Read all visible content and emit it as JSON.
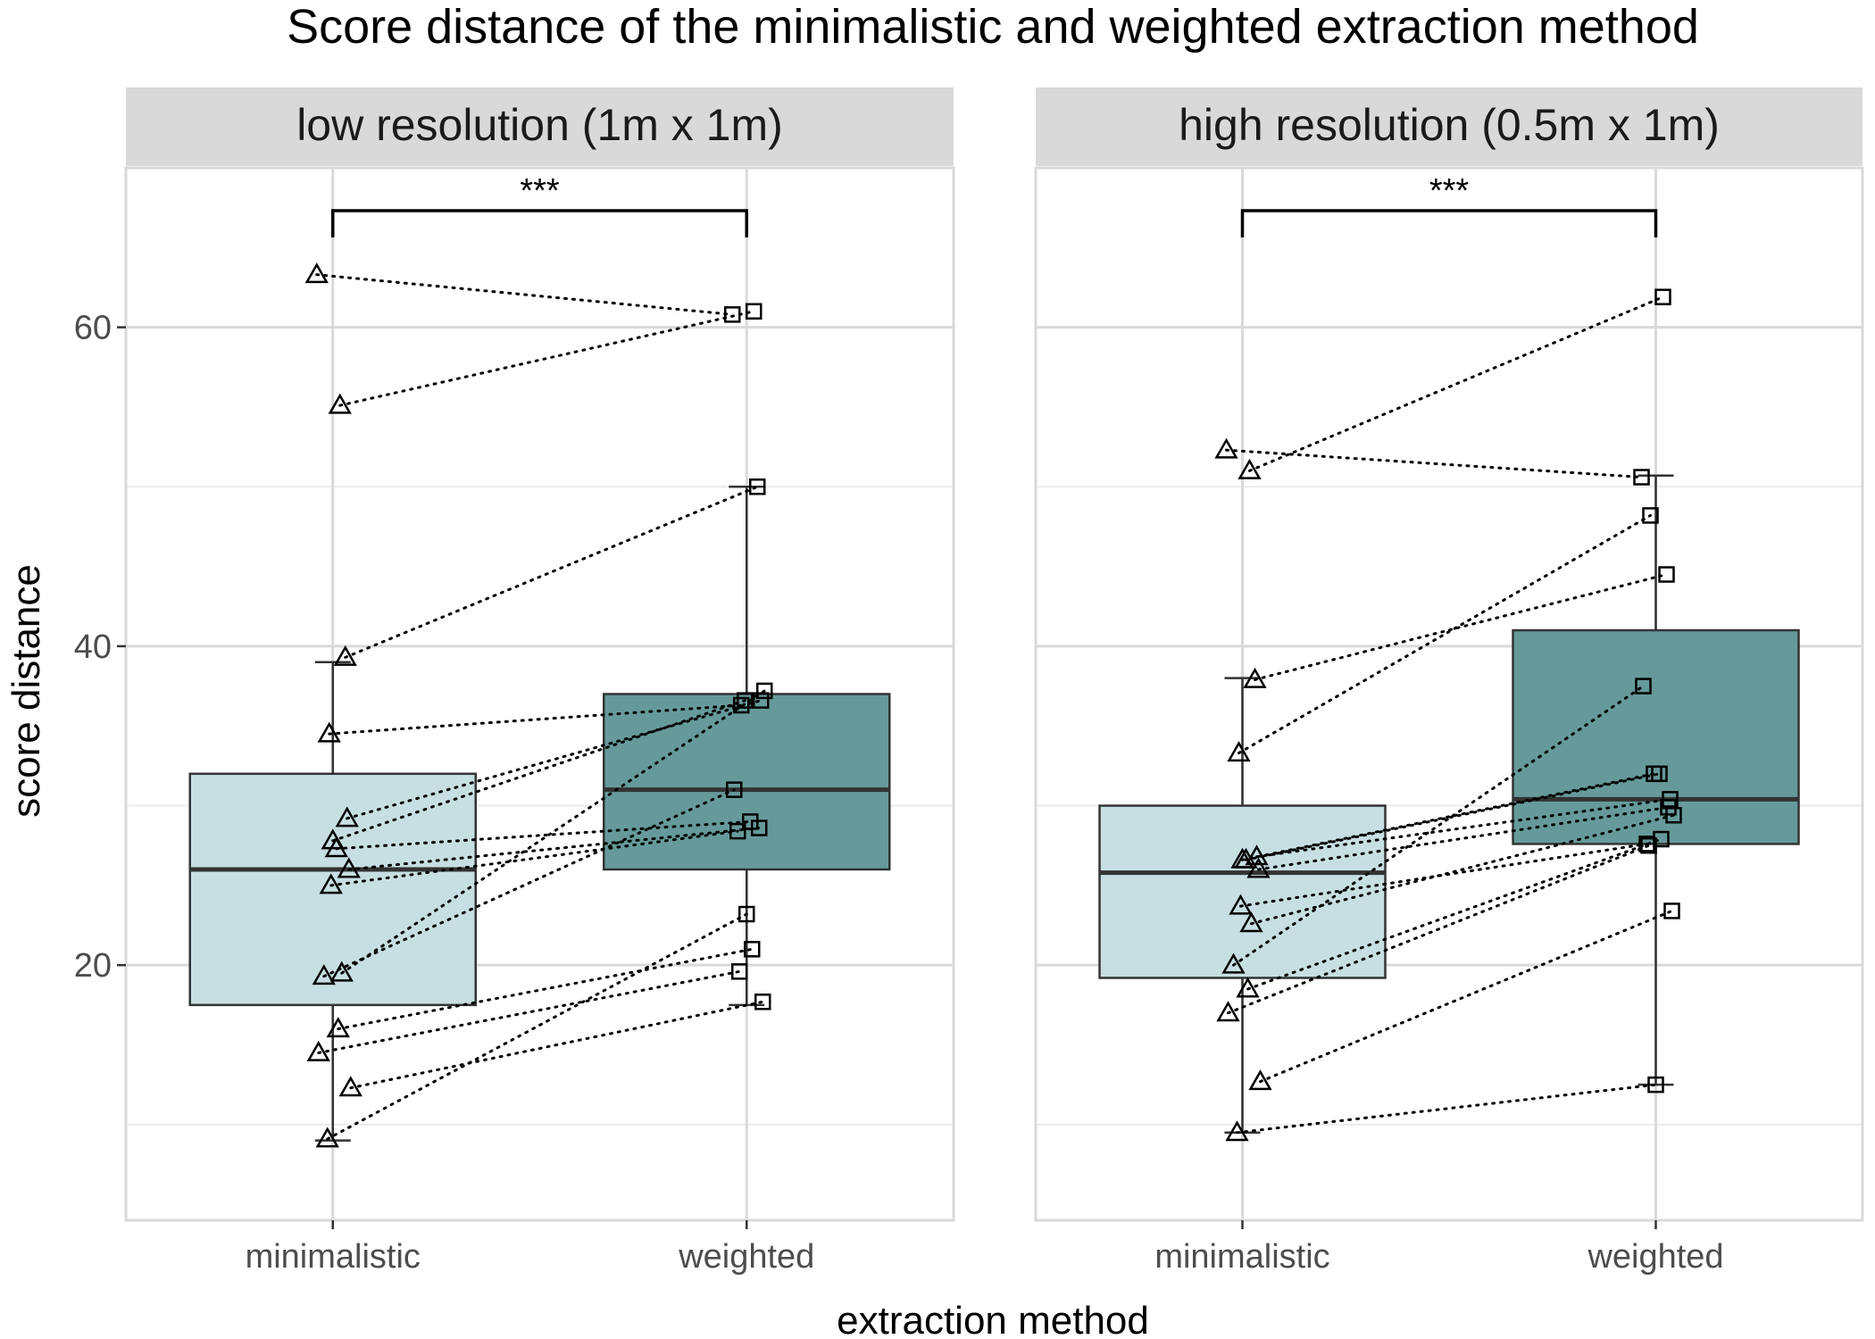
{
  "colors": {
    "panel_border": "#d9d9d9",
    "strip_fill": "#d9d9d9",
    "grid_major": "#d9d9d9",
    "grid_minor": "#ebebeb",
    "box_minimalistic": "#c7dfe3",
    "box_weighted": "#669a9a",
    "box_outline": "#333333"
  },
  "chart_data": {
    "type": "boxplot",
    "title": "Score distance of the minimalistic and weighted extraction method",
    "xlabel": "extraction method",
    "ylabel": "score distance",
    "y_ticks": [
      20,
      40,
      60
    ],
    "ylim": [
      4,
      70
    ],
    "categories": [
      "minimalistic",
      "weighted"
    ],
    "grid": true,
    "significance_label": "***",
    "panels": [
      {
        "label": "low resolution (1m x 1m)",
        "boxes": [
          {
            "category": "minimalistic",
            "q1": 17.5,
            "median": 26,
            "q3": 32,
            "whisker_low": 9,
            "whisker_high": 39
          },
          {
            "category": "weighted",
            "q1": 26,
            "median": 31,
            "q3": 37,
            "whisker_low": 17.5,
            "whisker_high": 50
          }
        ],
        "pairs": [
          {
            "minimalistic": 63.3,
            "weighted": 60.8
          },
          {
            "minimalistic": 55.1,
            "weighted": 61.0
          },
          {
            "minimalistic": 39.3,
            "weighted": 50.0
          },
          {
            "minimalistic": 34.5,
            "weighted": 36.3
          },
          {
            "minimalistic": 29.2,
            "weighted": 36.6
          },
          {
            "minimalistic": 27.8,
            "weighted": 36.6
          },
          {
            "minimalistic": 27.3,
            "weighted": 29.0
          },
          {
            "minimalistic": 26.0,
            "weighted": 28.6
          },
          {
            "minimalistic": 25.0,
            "weighted": 28.4
          },
          {
            "minimalistic": 19.5,
            "weighted": 37.2
          },
          {
            "minimalistic": 19.3,
            "weighted": 31.0
          },
          {
            "minimalistic": 16.0,
            "weighted": 21.0
          },
          {
            "minimalistic": 14.5,
            "weighted": 19.6
          },
          {
            "minimalistic": 12.3,
            "weighted": 17.7
          },
          {
            "minimalistic": 9.1,
            "weighted": 23.2
          }
        ]
      },
      {
        "label": "high resolution (0.5m x 1m)",
        "boxes": [
          {
            "category": "minimalistic",
            "q1": 19.2,
            "median": 25.8,
            "q3": 30,
            "whisker_low": 9.5,
            "whisker_high": 38
          },
          {
            "category": "weighted",
            "q1": 27.6,
            "median": 30.4,
            "q3": 41,
            "whisker_low": 12.5,
            "whisker_high": 50.7
          }
        ],
        "pairs": [
          {
            "minimalistic": 52.3,
            "weighted": 50.6
          },
          {
            "minimalistic": 51.0,
            "weighted": 61.9
          },
          {
            "minimalistic": 37.9,
            "weighted": 44.5
          },
          {
            "minimalistic": 33.3,
            "weighted": 48.2
          },
          {
            "minimalistic": 26.8,
            "weighted": 30.4
          },
          {
            "minimalistic": 26.6,
            "weighted": 32.0
          },
          {
            "minimalistic": 26.6,
            "weighted": 32.0
          },
          {
            "minimalistic": 26.0,
            "weighted": 29.9
          },
          {
            "minimalistic": 23.7,
            "weighted": 27.6
          },
          {
            "minimalistic": 22.6,
            "weighted": 29.4
          },
          {
            "minimalistic": 20.0,
            "weighted": 37.5
          },
          {
            "minimalistic": 18.5,
            "weighted": 27.9
          },
          {
            "minimalistic": 17.0,
            "weighted": 27.5
          },
          {
            "minimalistic": 12.7,
            "weighted": 23.4
          },
          {
            "minimalistic": 9.5,
            "weighted": 12.5
          }
        ]
      }
    ]
  }
}
